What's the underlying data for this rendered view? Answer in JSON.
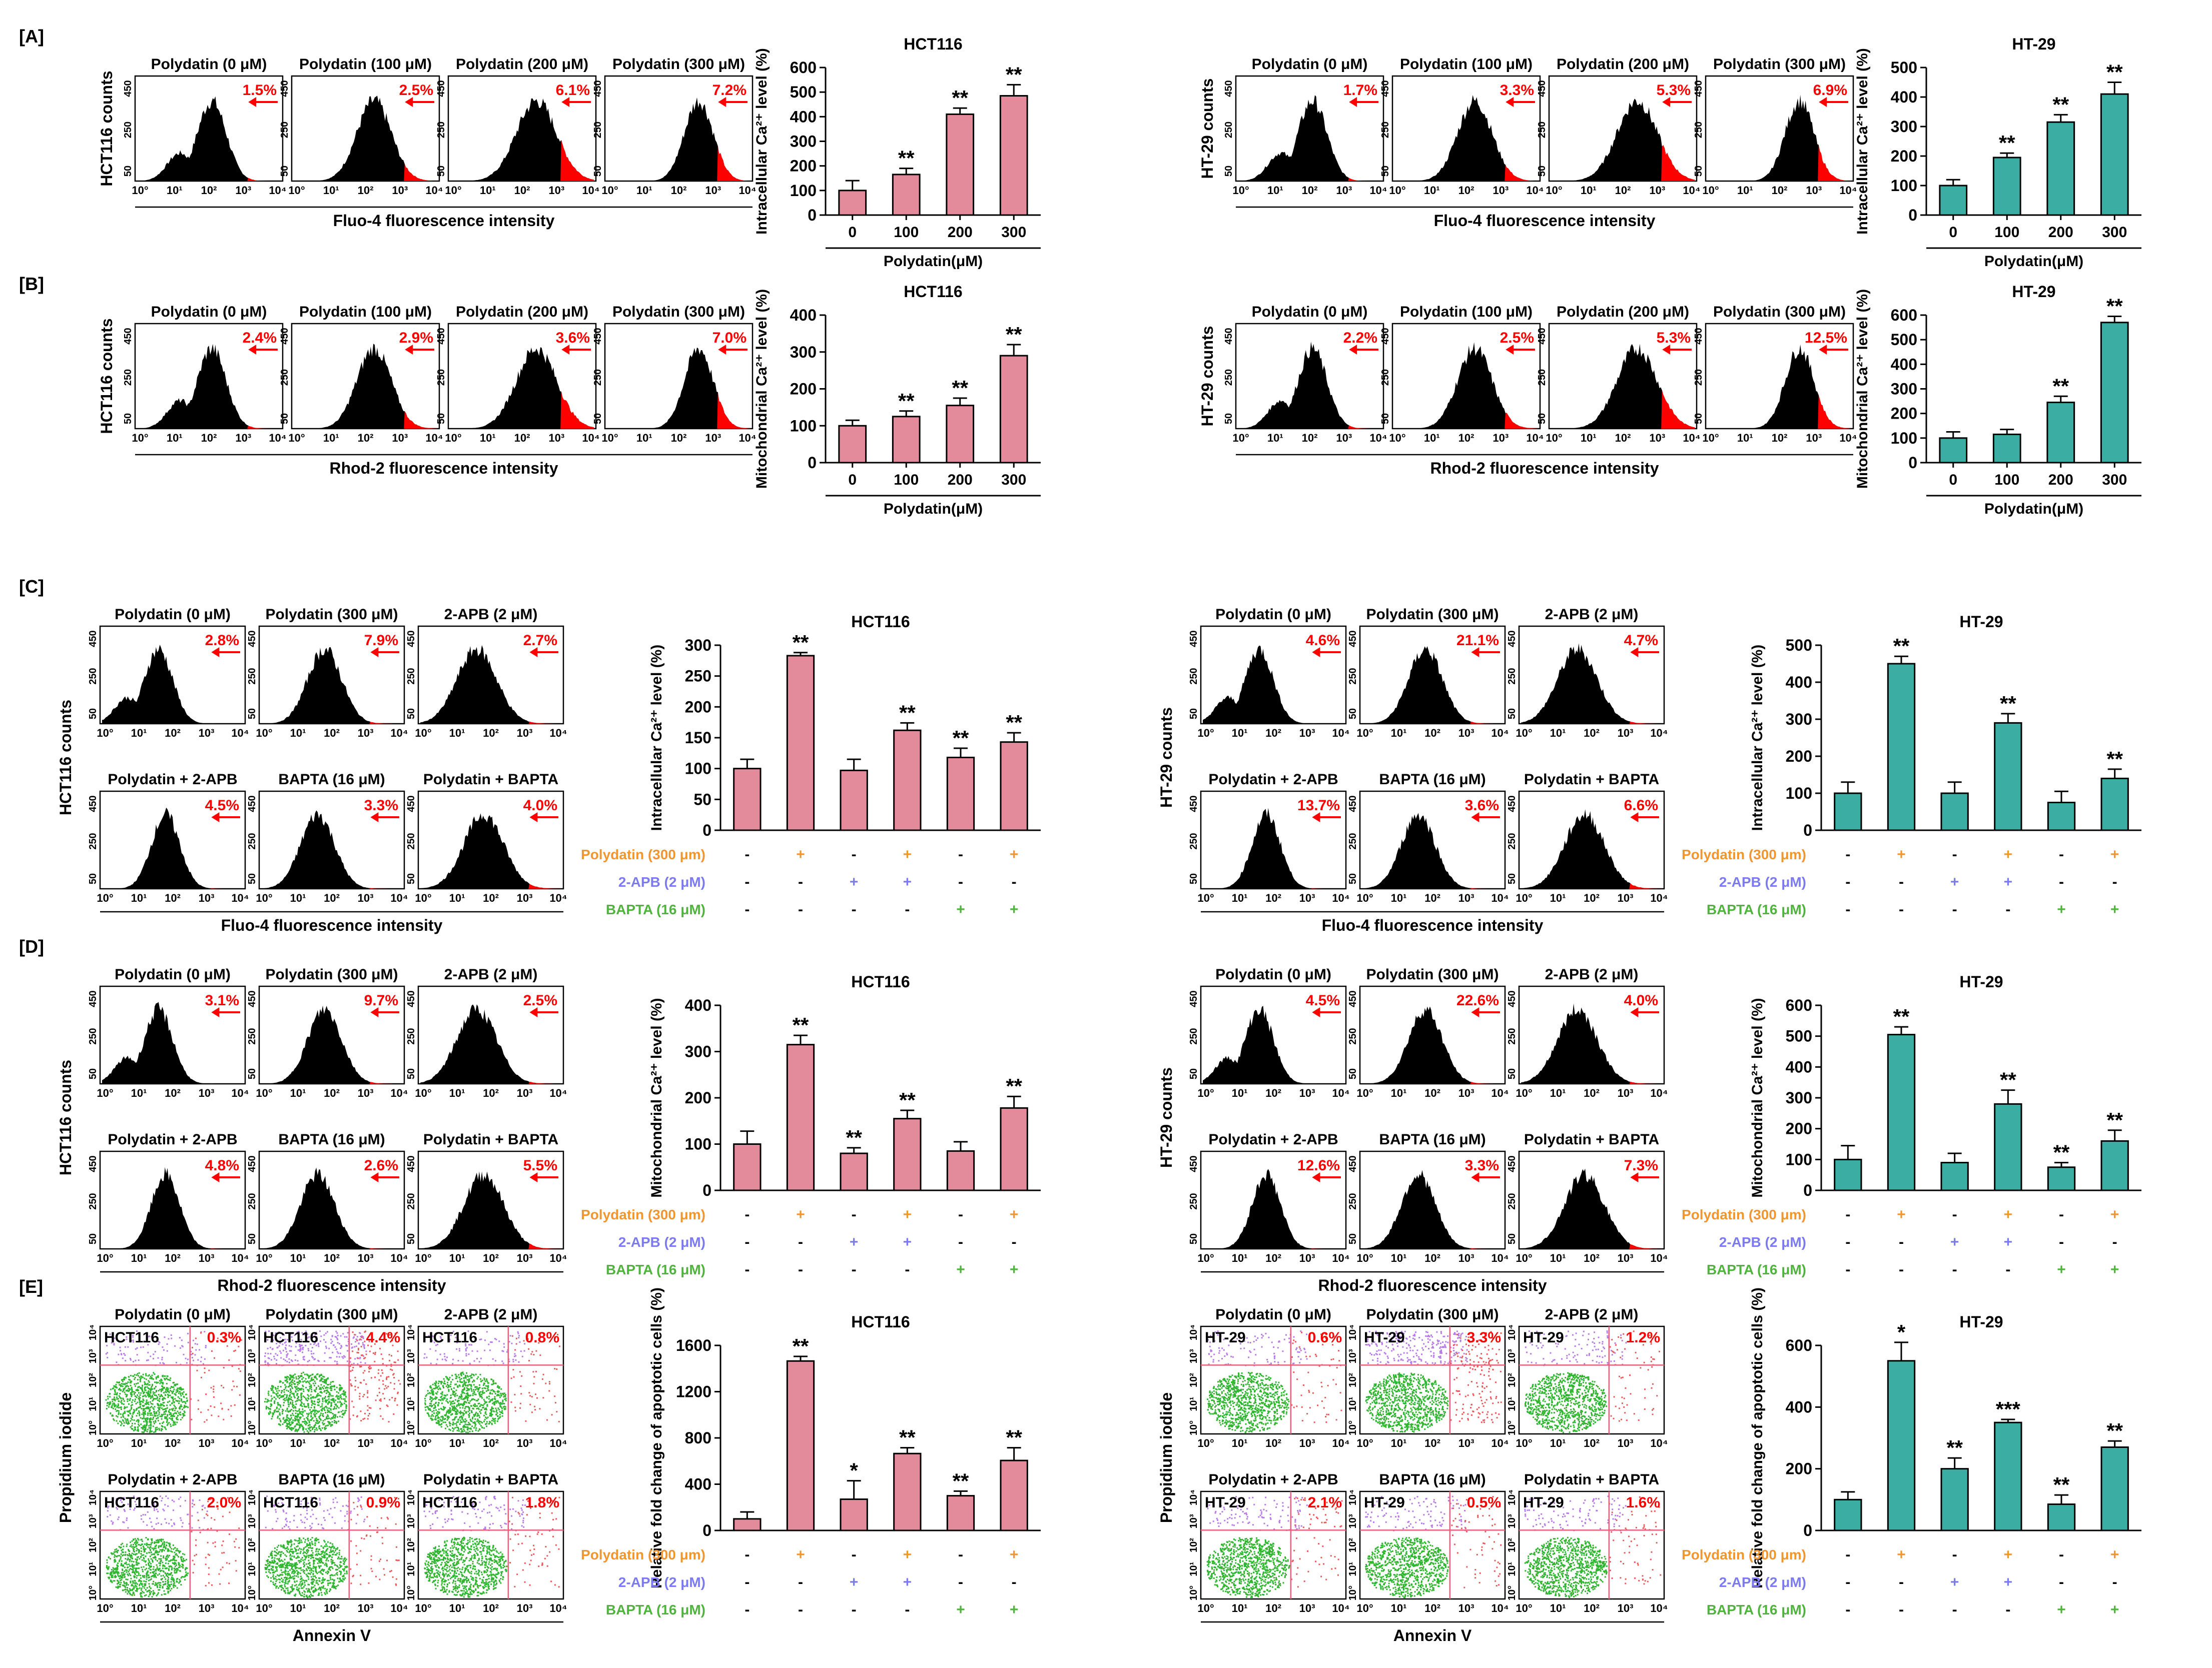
{
  "figure": {
    "panel_labels": [
      "[A]",
      "[B]",
      "[C]",
      "[D]",
      "[E]"
    ],
    "row_types": [
      "dose",
      "dose",
      "combo",
      "combo",
      "apop"
    ],
    "cell_lines": [
      "HCT116",
      "HT-29"
    ],
    "axis_counts_label": "counts",
    "tick_labels": [
      "10°",
      "10¹",
      "10²",
      "10³",
      "10⁴"
    ],
    "count_ticks": [
      "450",
      "250",
      "50"
    ],
    "fluor_labels": [
      "Fluo-4 fluorescence intensity",
      "Rhod-2 fluorescence intensity",
      "Fluo-4 fluorescence intensity",
      "Rhod-2 fluorescence intensity",
      "Annexin V"
    ],
    "y_label_apop": "Propidium iodide",
    "treatment_label": "Polydatin(μM)"
  },
  "histograms": {
    "dose_titles": [
      "Polydatin (0 μM)",
      "Polydatin (100 μM)",
      "Polydatin (200 μM)",
      "Polydatin (300 μM)"
    ],
    "combo_titles": [
      "Polydatin (0 μM)",
      "Polydatin (300 μM)",
      "2-APB (2 μM)",
      "Polydatin + 2-APB",
      "BAPTA (16 μM)",
      "Polydatin + BAPTA"
    ],
    "percentages": [
      [
        [
          "1.5%",
          "2.5%",
          "6.1%",
          "7.2%"
        ],
        [
          "1.7%",
          "3.3%",
          "5.3%",
          "6.9%"
        ]
      ],
      [
        [
          "2.4%",
          "2.9%",
          "3.6%",
          "7.0%"
        ],
        [
          "2.2%",
          "2.5%",
          "5.3%",
          "12.5%"
        ]
      ],
      [
        [
          "2.8%",
          "7.9%",
          "2.7%",
          "4.5%",
          "3.3%",
          "4.0%"
        ],
        [
          "4.6%",
          "21.1%",
          "4.7%",
          "13.7%",
          "3.6%",
          "6.6%"
        ]
      ],
      [
        [
          "3.1%",
          "9.7%",
          "2.5%",
          "4.8%",
          "2.6%",
          "5.5%"
        ],
        [
          "4.5%",
          "22.6%",
          "4.0%",
          "12.6%",
          "3.3%",
          "7.3%"
        ]
      ],
      [
        [
          "0.3%",
          "4.4%",
          "0.8%",
          "2.0%",
          "0.9%",
          "1.8%"
        ],
        [
          "0.6%",
          "3.3%",
          "1.2%",
          "2.1%",
          "0.5%",
          "1.6%"
        ]
      ]
    ]
  },
  "combo_table": {
    "labels": [
      "Polydatin (300 μm)",
      "2-APB (2 μM)",
      "BAPTA (16 μM)"
    ],
    "colors": [
      "#f0962e",
      "#7b7bef",
      "#4fb33e"
    ],
    "signs": [
      [
        "-",
        "+",
        "-",
        "+",
        "-",
        "+"
      ],
      [
        "-",
        "-",
        "+",
        "+",
        "-",
        "-"
      ],
      [
        "-",
        "-",
        "-",
        "-",
        "+",
        "+"
      ]
    ]
  },
  "colors": {
    "hct": "#e38a9b",
    "ht": "#3bada3",
    "red": "#ff0000",
    "black": "#000000"
  },
  "chart_data": [
    {
      "type": "bar",
      "panel": "A",
      "title": "HCT116",
      "ylabel": "Intracellular Ca²⁺ level (%)",
      "xlabel": "Polydatin(μM)",
      "categories": [
        "0",
        "100",
        "200",
        "300"
      ],
      "values": [
        100,
        165,
        410,
        485
      ],
      "errors": [
        40,
        25,
        25,
        45
      ],
      "sig": [
        "",
        "**",
        "**",
        "**"
      ],
      "ylim": [
        0,
        600
      ],
      "yticks": [
        0,
        100,
        200,
        300,
        400,
        500,
        600
      ]
    },
    {
      "type": "bar",
      "panel": "A",
      "title": "HT-29",
      "ylabel": "Intracellular Ca²⁺ level (%)",
      "xlabel": "Polydatin(μM)",
      "categories": [
        "0",
        "100",
        "200",
        "300"
      ],
      "values": [
        100,
        195,
        315,
        410
      ],
      "errors": [
        20,
        15,
        25,
        40
      ],
      "sig": [
        "",
        "**",
        "**",
        "**"
      ],
      "ylim": [
        0,
        500
      ],
      "yticks": [
        0,
        100,
        200,
        300,
        400,
        500
      ]
    },
    {
      "type": "bar",
      "panel": "B",
      "title": "HCT116",
      "ylabel": "Mitochondrial Ca²⁺ level (%)",
      "xlabel": "Polydatin(μM)",
      "categories": [
        "0",
        "100",
        "200",
        "300"
      ],
      "values": [
        100,
        125,
        155,
        290
      ],
      "errors": [
        15,
        15,
        20,
        30
      ],
      "sig": [
        "",
        "**",
        "**",
        "**"
      ],
      "ylim": [
        0,
        400
      ],
      "yticks": [
        0,
        100,
        200,
        300,
        400
      ]
    },
    {
      "type": "bar",
      "panel": "B",
      "title": "HT-29",
      "ylabel": "Mitochondrial Ca²⁺ level (%)",
      "xlabel": "Polydatin(μM)",
      "categories": [
        "0",
        "100",
        "200",
        "300"
      ],
      "values": [
        100,
        115,
        245,
        570
      ],
      "errors": [
        25,
        20,
        25,
        25
      ],
      "sig": [
        "",
        "",
        "**",
        "**"
      ],
      "ylim": [
        0,
        600
      ],
      "yticks": [
        0,
        100,
        200,
        300,
        400,
        500,
        600
      ]
    },
    {
      "type": "bar",
      "panel": "C",
      "title": "HCT116",
      "ylabel": "Intracellular Ca²⁺ level (%)",
      "categories": [
        "1",
        "2",
        "3",
        "4",
        "5",
        "6"
      ],
      "values": [
        100,
        283,
        97,
        162,
        118,
        143
      ],
      "errors": [
        15,
        5,
        18,
        12,
        15,
        15
      ],
      "sig": [
        "",
        "**",
        "",
        "**",
        "**",
        "**"
      ],
      "ylim": [
        0,
        300
      ],
      "yticks": [
        0,
        50,
        100,
        150,
        200,
        250,
        300
      ]
    },
    {
      "type": "bar",
      "panel": "C",
      "title": "HT-29",
      "ylabel": "Intracellular Ca²⁺ level (%)",
      "categories": [
        "1",
        "2",
        "3",
        "4",
        "5",
        "6"
      ],
      "values": [
        100,
        450,
        100,
        290,
        75,
        140
      ],
      "errors": [
        30,
        20,
        30,
        25,
        30,
        25
      ],
      "sig": [
        "",
        "**",
        "",
        "**",
        "",
        "**"
      ],
      "ylim": [
        0,
        500
      ],
      "yticks": [
        0,
        100,
        200,
        300,
        400,
        500
      ]
    },
    {
      "type": "bar",
      "panel": "D",
      "title": "HCT116",
      "ylabel": "Mitochondrial Ca²⁺ level (%)",
      "categories": [
        "1",
        "2",
        "3",
        "4",
        "5",
        "6"
      ],
      "values": [
        100,
        315,
        80,
        155,
        85,
        178
      ],
      "errors": [
        28,
        20,
        12,
        18,
        20,
        25
      ],
      "sig": [
        "",
        "**",
        "**",
        "**",
        "",
        "**"
      ],
      "ylim": [
        0,
        400
      ],
      "yticks": [
        0,
        100,
        200,
        300,
        400
      ]
    },
    {
      "type": "bar",
      "panel": "D",
      "title": "HT-29",
      "ylabel": "Mitochondrial Ca²⁺ level (%)",
      "categories": [
        "1",
        "2",
        "3",
        "4",
        "5",
        "6"
      ],
      "values": [
        100,
        505,
        90,
        280,
        75,
        160
      ],
      "errors": [
        45,
        25,
        30,
        45,
        15,
        35
      ],
      "sig": [
        "",
        "**",
        "",
        "**",
        "**",
        "**"
      ],
      "ylim": [
        0,
        600
      ],
      "yticks": [
        0,
        100,
        200,
        300,
        400,
        500,
        600
      ]
    },
    {
      "type": "bar",
      "panel": "E",
      "title": "HCT116",
      "ylabel": "Relative fold change of apoptotic cells (%)",
      "categories": [
        "1",
        "2",
        "3",
        "4",
        "5",
        "6"
      ],
      "values": [
        100,
        1465,
        270,
        665,
        300,
        605
      ],
      "errors": [
        60,
        40,
        160,
        50,
        40,
        110
      ],
      "sig": [
        "",
        "**",
        "*",
        "**",
        "**",
        "**"
      ],
      "ylim": [
        0,
        1600
      ],
      "yticks": [
        0,
        400,
        800,
        1200,
        1600
      ]
    },
    {
      "type": "bar",
      "panel": "E",
      "title": "HT-29",
      "ylabel": "Relative fold change of apoptotic cells (%)",
      "categories": [
        "1",
        "2",
        "3",
        "4",
        "5",
        "6"
      ],
      "values": [
        100,
        550,
        200,
        350,
        85,
        270
      ],
      "errors": [
        25,
        60,
        35,
        10,
        30,
        20
      ],
      "sig": [
        "",
        "*",
        "**",
        "***",
        "**",
        "**"
      ],
      "ylim": [
        0,
        600
      ],
      "yticks": [
        0,
        200,
        400,
        600
      ]
    }
  ]
}
